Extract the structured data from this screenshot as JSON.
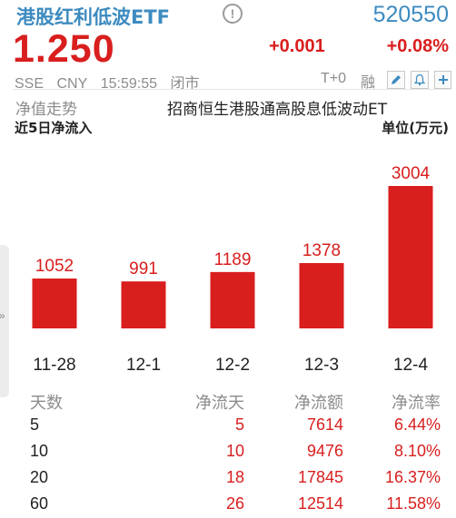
{
  "header": {
    "name": "港股红利低波ETF",
    "info_symbol": "!",
    "code": "520550",
    "price": "1.250",
    "change": "+0.001",
    "change_pct": "+0.08%",
    "exchange": "SSE",
    "currency": "CNY",
    "time": "15:59:55",
    "market_status": "闭市",
    "trade_mode": "T+0",
    "margin_flag": "融",
    "icons": [
      "edit-icon",
      "alert-bell-icon",
      "add-icon"
    ]
  },
  "tabs": {
    "nav_trend": "净值走势",
    "fund_fullname": "招商恒生港股通高股息低波动ET"
  },
  "flow": {
    "title": "近5日净流入",
    "unit": "单位(万元)"
  },
  "chart_data": {
    "type": "bar",
    "title": "近5日净流入",
    "ylabel": "单位(万元)",
    "categories": [
      "11-28",
      "12-1",
      "12-2",
      "12-3",
      "12-4"
    ],
    "values": [
      1052,
      991,
      1189,
      1378,
      3004
    ],
    "labels": [
      "1052",
      "991",
      "1189",
      "1378",
      "3004"
    ],
    "ylim": [
      0,
      3004
    ],
    "color": "#d91e1e",
    "grid": false
  },
  "table": {
    "headers": [
      "天数",
      "净流天",
      "净流额",
      "净流率"
    ],
    "rows": [
      [
        "5",
        "5",
        "7614",
        "6.44%"
      ],
      [
        "10",
        "10",
        "9476",
        "8.10%"
      ],
      [
        "20",
        "18",
        "17845",
        "16.37%"
      ],
      [
        "60",
        "26",
        "12514",
        "11.58%"
      ]
    ]
  },
  "colors": {
    "up": "#d91e1e",
    "accent": "#3d8bc0",
    "muted": "#8c8c8c"
  }
}
